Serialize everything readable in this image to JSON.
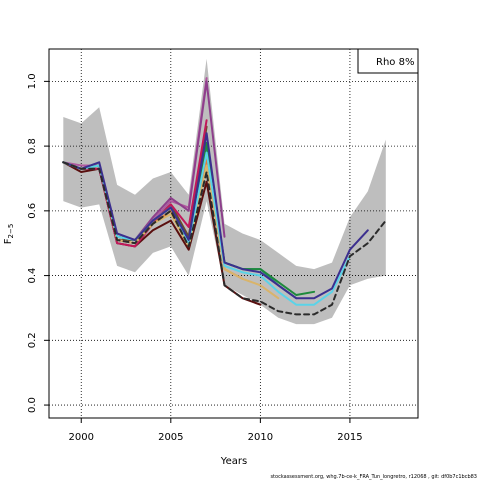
{
  "chart_data": {
    "type": "line",
    "xlabel": "Years",
    "ylabel_main": "F",
    "ylabel_sub": "2−5",
    "xlim": [
      1998.2,
      2018.8
    ],
    "ylim": [
      -0.04,
      1.1
    ],
    "x_ticks": [
      2000,
      2005,
      2010,
      2015
    ],
    "y_ticks": [
      0.0,
      0.2,
      0.4,
      0.6,
      0.8,
      1.0
    ],
    "y_tick_labels": [
      "0.0",
      "0.2",
      "0.4",
      "0.6",
      "0.8",
      "1.0"
    ],
    "grid": true,
    "legend_text": "Rho 8%",
    "legend_position": "top-right",
    "footer": "stockassessment.org, whg.7b-ce-k_FRA_Tun_longretro, r12068 , git: df0b7c1bcb83",
    "band_color": "#bebebe",
    "band": {
      "x": [
        1999,
        2000,
        2001,
        2002,
        2003,
        2004,
        2005,
        2006,
        2007,
        2008,
        2009,
        2010,
        2011,
        2012,
        2013,
        2014,
        2015,
        2016,
        2017
      ],
      "upper": [
        0.89,
        0.87,
        0.92,
        0.68,
        0.65,
        0.7,
        0.72,
        0.65,
        1.07,
        0.56,
        0.53,
        0.51,
        0.47,
        0.43,
        0.42,
        0.44,
        0.58,
        0.66,
        0.82
      ],
      "lower": [
        0.63,
        0.61,
        0.62,
        0.43,
        0.41,
        0.47,
        0.49,
        0.4,
        0.63,
        0.37,
        0.34,
        0.31,
        0.27,
        0.25,
        0.25,
        0.27,
        0.37,
        0.39,
        0.4
      ]
    },
    "series": [
      {
        "color": "#2b2b2b",
        "dash": "5,4",
        "x": [
          1999,
          2000,
          2001,
          2002,
          2003,
          2004,
          2005,
          2006,
          2007,
          2008,
          2009,
          2010,
          2011,
          2012,
          2013,
          2014,
          2015,
          2016,
          2017
        ],
        "values": [
          0.75,
          0.73,
          0.73,
          0.51,
          0.5,
          0.56,
          0.6,
          0.49,
          0.72,
          0.37,
          0.33,
          0.32,
          0.29,
          0.28,
          0.28,
          0.31,
          0.46,
          0.5,
          0.57
        ]
      },
      {
        "color": "#3c2f8f",
        "x": [
          1999,
          2000,
          2001,
          2002,
          2003,
          2004,
          2005,
          2006,
          2007,
          2008,
          2009,
          2010,
          2011,
          2012,
          2013,
          2014,
          2015,
          2016
        ],
        "values": [
          0.75,
          0.73,
          0.75,
          0.53,
          0.51,
          0.57,
          0.61,
          0.51,
          0.84,
          0.44,
          0.42,
          0.41,
          0.37,
          0.33,
          0.33,
          0.36,
          0.48,
          0.54
        ]
      },
      {
        "color": "#5ad3e8",
        "x": [
          1999,
          2000,
          2001,
          2002,
          2003,
          2004,
          2005,
          2006,
          2007,
          2008,
          2009,
          2010,
          2011,
          2012,
          2013,
          2014,
          2015
        ],
        "values": [
          0.75,
          0.73,
          0.74,
          0.52,
          0.51,
          0.57,
          0.61,
          0.5,
          0.78,
          0.43,
          0.41,
          0.4,
          0.35,
          0.31,
          0.31,
          0.35,
          0.46
        ]
      },
      {
        "color": "#1e8a3c",
        "x": [
          1999,
          2000,
          2001,
          2002,
          2003,
          2004,
          2005,
          2006,
          2007,
          2008,
          2009,
          2010,
          2011,
          2012,
          2013
        ],
        "values": [
          0.75,
          0.73,
          0.74,
          0.52,
          0.51,
          0.57,
          0.61,
          0.51,
          0.81,
          0.44,
          0.42,
          0.42,
          0.38,
          0.34,
          0.35
        ]
      },
      {
        "color": "#2f7f88",
        "x": [
          1999,
          2000,
          2001,
          2002,
          2003,
          2004,
          2005,
          2006,
          2007,
          2008,
          2009,
          2010,
          2011,
          2012
        ],
        "values": [
          0.75,
          0.73,
          0.74,
          0.52,
          0.51,
          0.57,
          0.61,
          0.51,
          0.8,
          0.44,
          0.42,
          0.42,
          0.37,
          0.33
        ]
      },
      {
        "color": "#d9b46a",
        "x": [
          1999,
          2000,
          2001,
          2002,
          2003,
          2004,
          2005,
          2006,
          2007,
          2008,
          2009,
          2010,
          2011
        ],
        "values": [
          0.75,
          0.73,
          0.74,
          0.51,
          0.5,
          0.56,
          0.59,
          0.49,
          0.74,
          0.42,
          0.39,
          0.37,
          0.33
        ]
      },
      {
        "color": "#e07b39",
        "x": [
          1999,
          2000,
          2001,
          2002,
          2003,
          2004,
          2005,
          2006,
          2007,
          2008,
          2009
        ],
        "values": [
          0.75,
          0.73,
          0.74,
          0.51,
          0.5,
          0.56,
          0.6,
          0.5,
          0.76,
          0.42,
          0.39
        ]
      },
      {
        "color": "#8e3f8c",
        "x": [
          1999,
          2000,
          2001,
          2002,
          2003,
          2004,
          2005,
          2006,
          2007,
          2008
        ],
        "values": [
          0.75,
          0.73,
          0.74,
          0.52,
          0.51,
          0.58,
          0.64,
          0.6,
          1.0,
          0.52
        ]
      },
      {
        "color": "#b0589e",
        "x": [
          1999,
          2000,
          2001,
          2002,
          2003,
          2004,
          2005,
          2006,
          2007
        ],
        "values": [
          0.75,
          0.74,
          0.74,
          0.51,
          0.5,
          0.57,
          0.63,
          0.61,
          1.01
        ]
      },
      {
        "color": "#c2185b",
        "x": [
          1999,
          2000,
          2001,
          2002,
          2003,
          2004,
          2005,
          2006,
          2007
        ],
        "values": [
          0.75,
          0.73,
          0.73,
          0.5,
          0.49,
          0.56,
          0.62,
          0.55,
          0.88
        ]
      },
      {
        "color": "#6b4a2b",
        "x": [
          1999,
          2000,
          2001,
          2002,
          2003,
          2004,
          2005,
          2006,
          2007
        ],
        "values": [
          0.75,
          0.73,
          0.74,
          0.51,
          0.51,
          0.57,
          0.62,
          0.52,
          0.86
        ]
      },
      {
        "color": "#5a0f0f",
        "x": [
          1999,
          2000,
          2001,
          2002,
          2003,
          2004,
          2005,
          2006,
          2007,
          2008,
          2009,
          2010
        ],
        "values": [
          0.75,
          0.72,
          0.73,
          0.5,
          0.49,
          0.54,
          0.57,
          0.48,
          0.69,
          0.37,
          0.33,
          0.31
        ]
      }
    ]
  }
}
